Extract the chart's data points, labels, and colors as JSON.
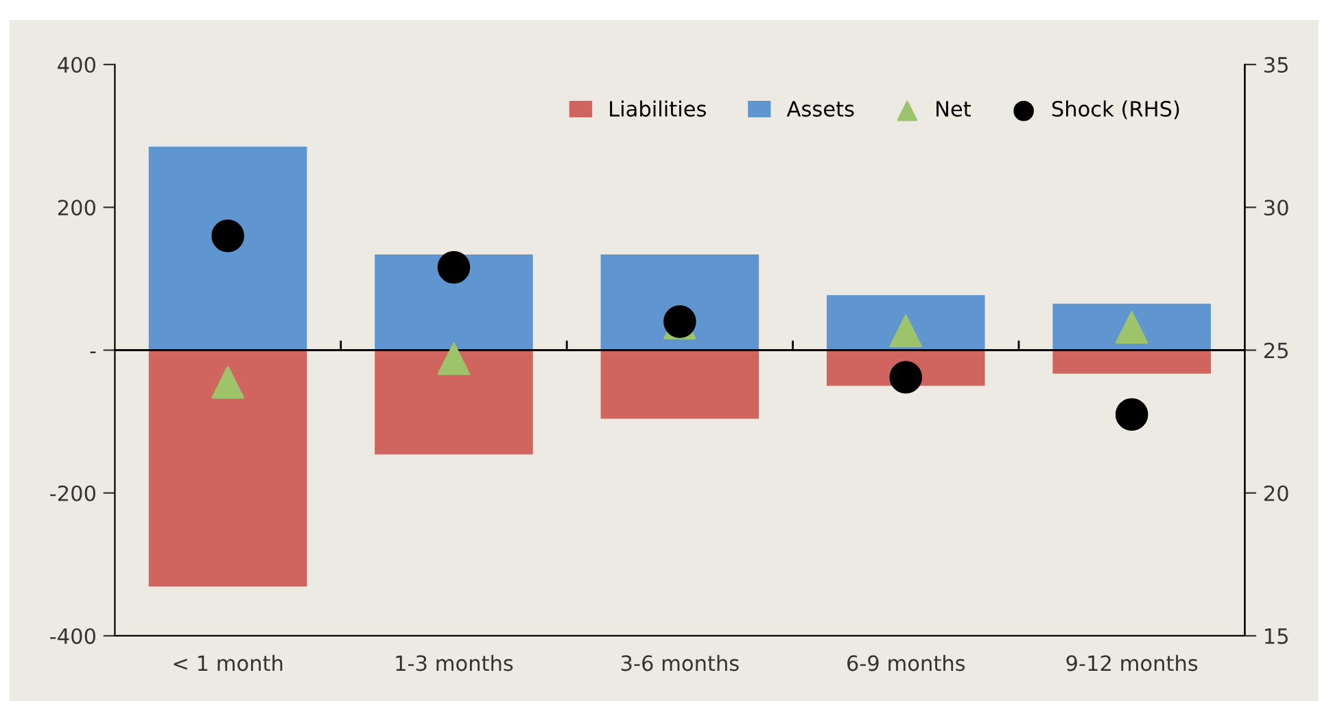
{
  "chart_data": {
    "type": "bar",
    "stacked": true,
    "categories": [
      "< 1 month",
      "1-3 months",
      "3-6 months",
      "6-9 months",
      "9-12 months"
    ],
    "series": [
      {
        "name": "Liabilities",
        "color": "#d0655f",
        "values": [
          -331,
          -146,
          -96,
          -50,
          -33
        ]
      },
      {
        "name": "Assets",
        "color": "#6096d0",
        "values": [
          285,
          134,
          134,
          77,
          65
        ]
      },
      {
        "name": "Net",
        "type": "scatter",
        "marker": "triangle",
        "color": "#9dc36b",
        "values": [
          -45,
          -12,
          38,
          27,
          32
        ]
      },
      {
        "name": "Shock (RHS)",
        "type": "scatter",
        "marker": "circle",
        "color": "#000000",
        "axis": "y2",
        "values": [
          29,
          27.9,
          26,
          24.05,
          22.75
        ]
      }
    ],
    "ylim": [
      -400,
      400
    ],
    "yticks": [
      -400,
      -200,
      {
        "value": 0,
        "label": "-"
      },
      200,
      400
    ],
    "y2lim": [
      15,
      35
    ],
    "y2ticks": [
      15,
      20,
      25,
      30,
      35
    ],
    "ref_lines": [
      {
        "axis": "y",
        "value": 0,
        "color": "#000000"
      }
    ],
    "grid": false,
    "legend": "top right"
  }
}
